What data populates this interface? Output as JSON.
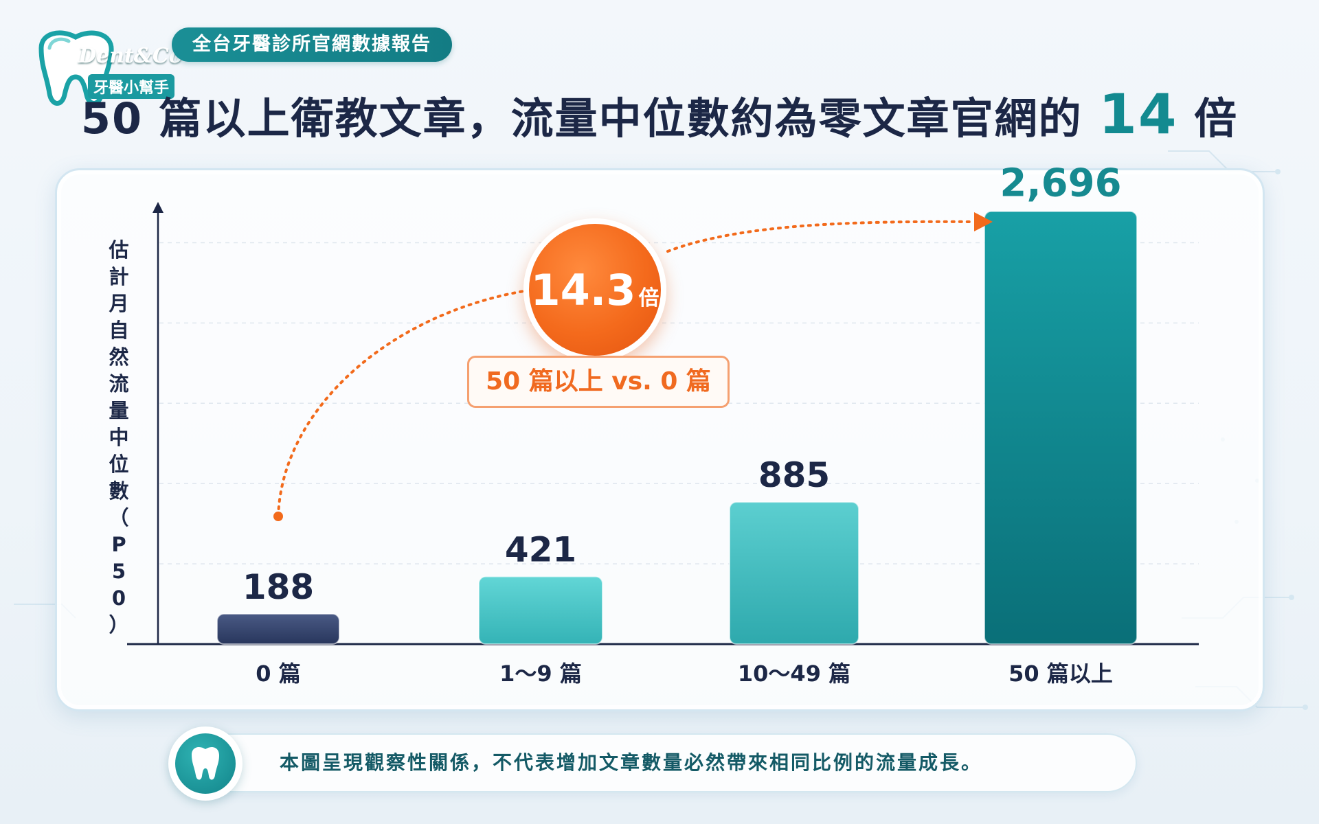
{
  "logo": {
    "brand": "Dent&Co",
    "subtitle": "牙醫小幫手"
  },
  "header": {
    "report_label": "全台牙醫診所官網數據報告",
    "title_prefix": "50 篇以上衛教文章，流量中位數約為零文章官網的 ",
    "title_highlight": "14",
    "title_suffix": " 倍"
  },
  "chart_data": {
    "type": "bar",
    "ylabel": "估計月自然流量中位數（P50）",
    "xlabel": "",
    "categories": [
      "0 篇",
      "1～9 篇",
      "10～49 篇",
      "50 篇以上"
    ],
    "values": [
      188,
      421,
      885,
      2696
    ],
    "value_labels": [
      "188",
      "421",
      "885",
      "2,696"
    ],
    "ylim": [
      0,
      2900
    ],
    "grid": true,
    "colors": {
      "first_bar": "#33426a",
      "mid_bars": "#46c6c6",
      "last_bar": "#0e8a92",
      "accent": "#f26a1b"
    }
  },
  "callout": {
    "multiplier": "14.3",
    "unit": "倍",
    "comparison": "50 篇以上 vs. 0 篇"
  },
  "note": {
    "icon": "tooth-icon",
    "text": "本圖呈現觀察性關係，不代表增加文章數量必然帶來相同比例的流量成長。"
  }
}
